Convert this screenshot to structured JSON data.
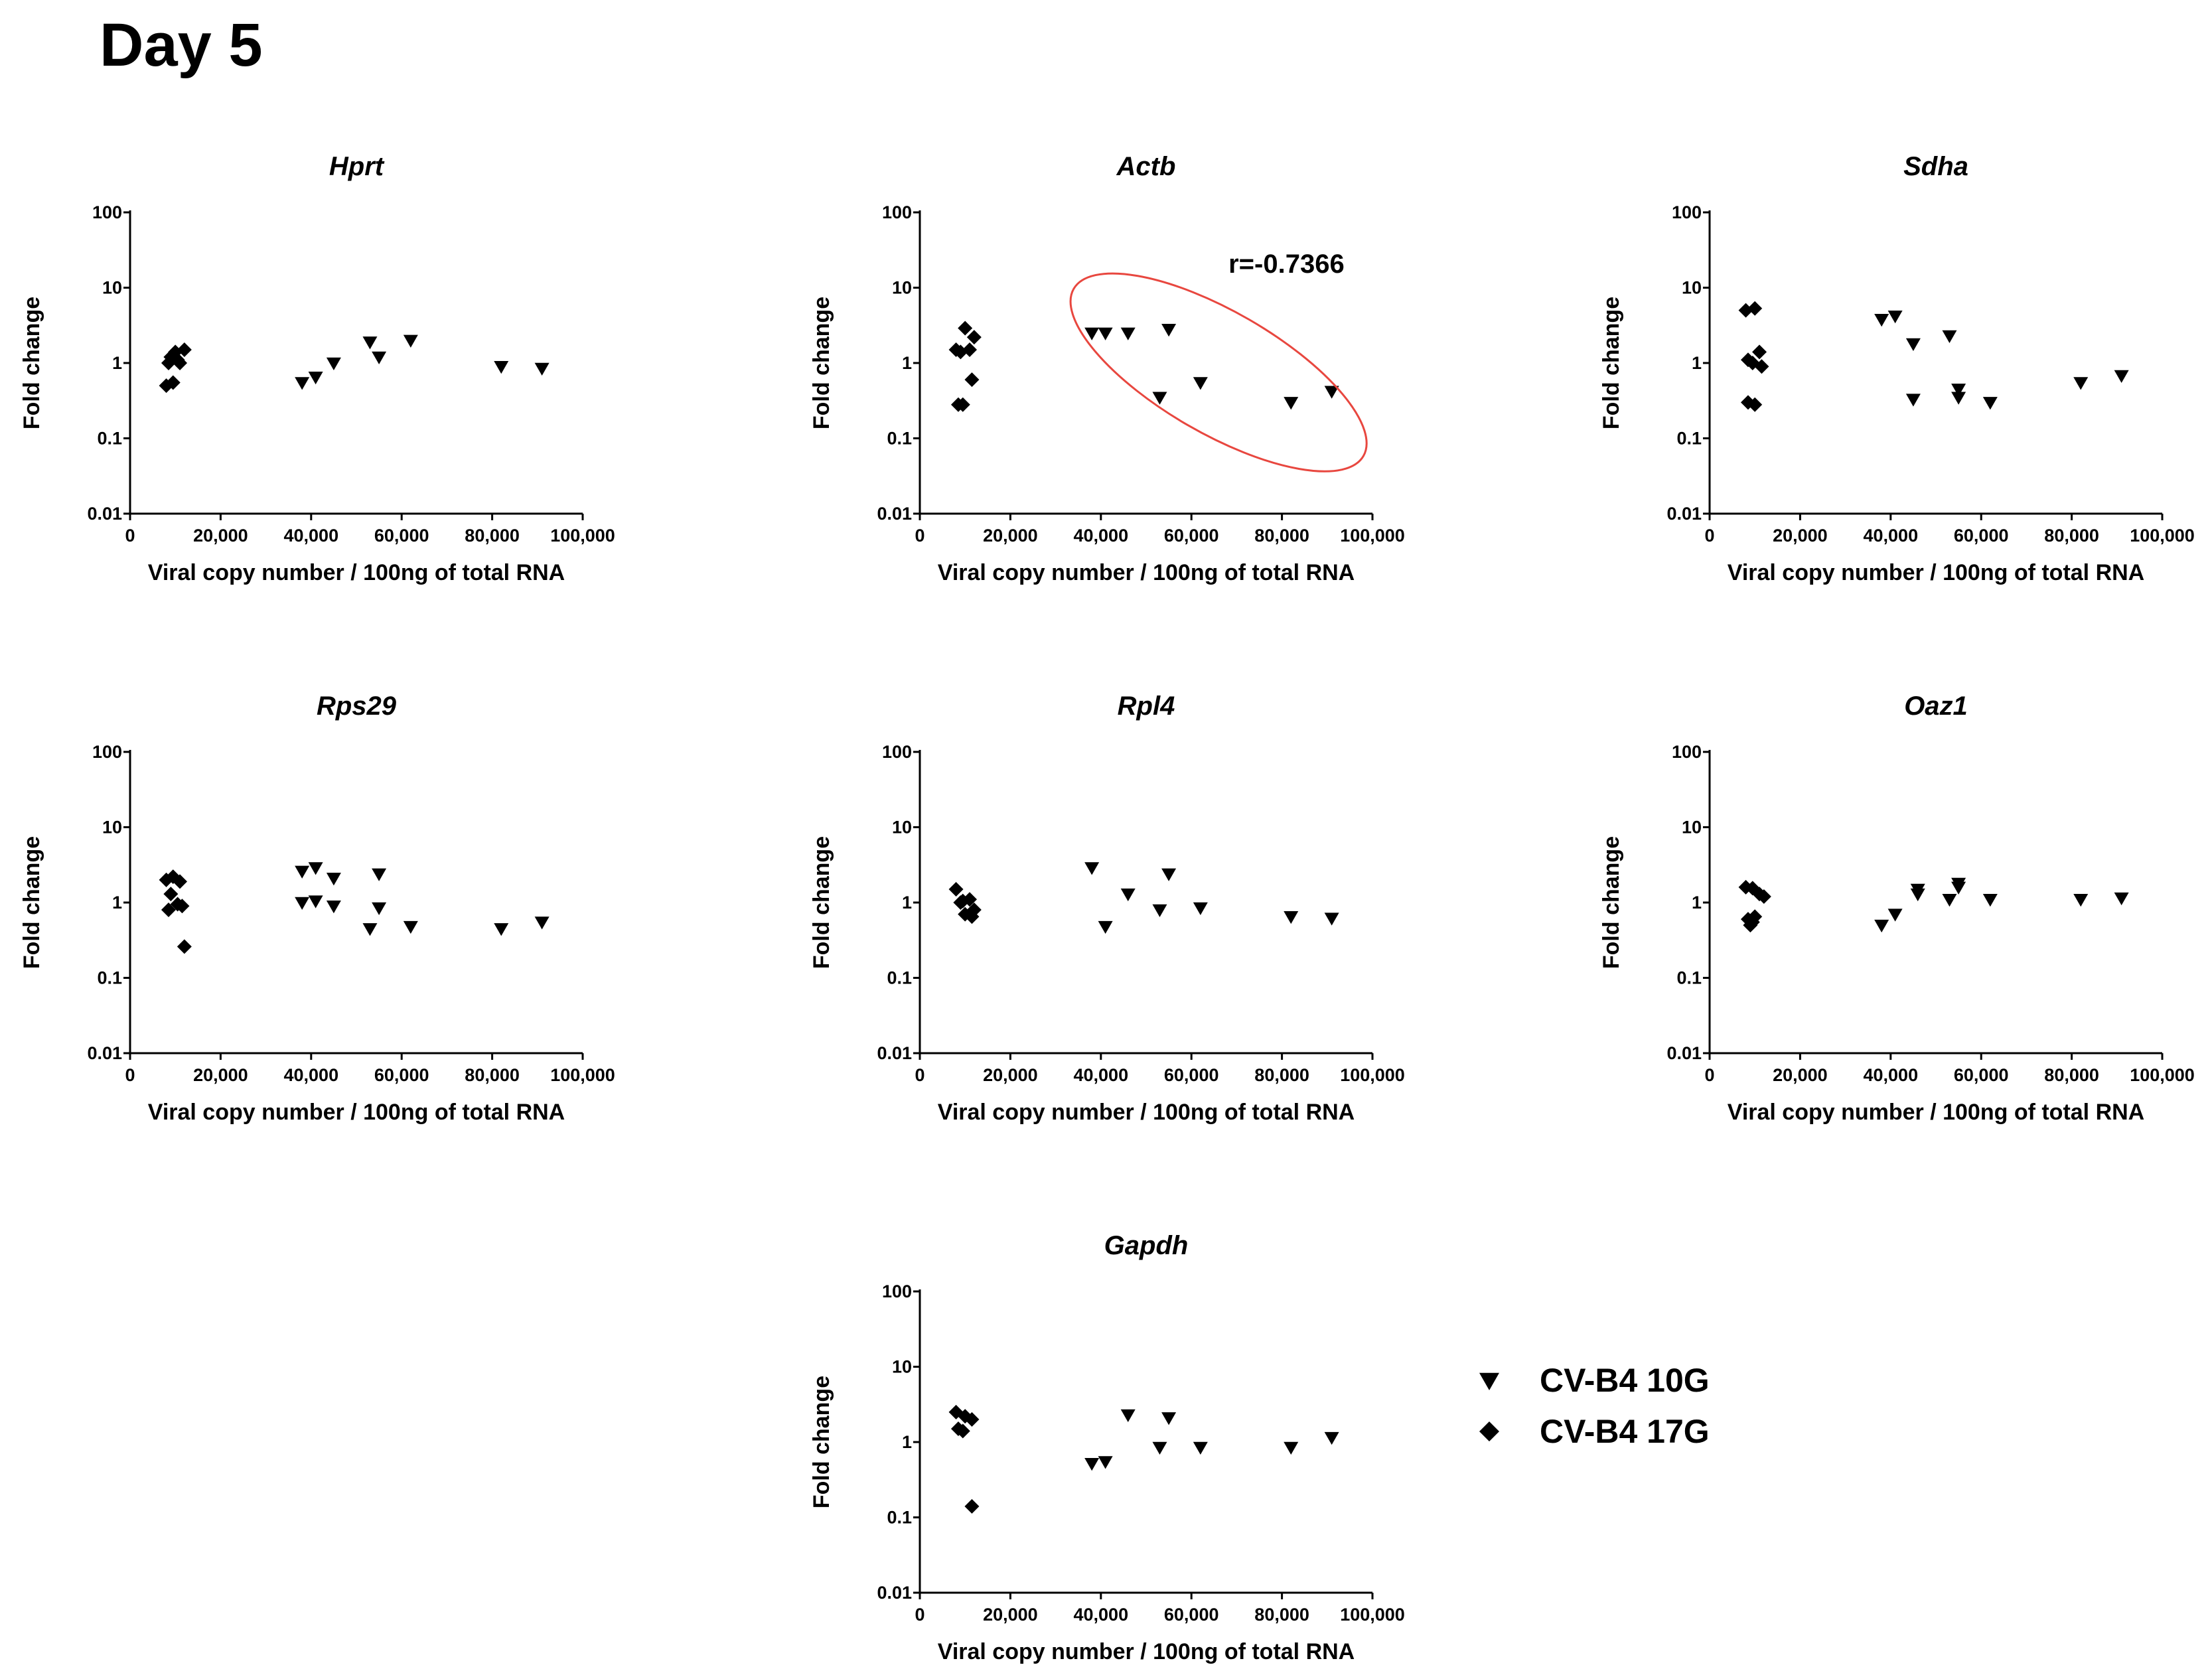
{
  "page_title": "Day 5",
  "colors": {
    "marker": "#000000",
    "annotation_ellipse": "#e8473f"
  },
  "legend": [
    {
      "label": "CV-B4 10G",
      "marker": "triangle-down"
    },
    {
      "label": "CV-B4 17G",
      "marker": "diamond"
    }
  ],
  "chart_data": [
    {
      "type": "scatter",
      "title": "Hprt",
      "xlabel": "Viral copy number / 100ng of total RNA",
      "ylabel": "Fold change",
      "xlim": [
        0,
        100000
      ],
      "ylim": [
        0.01,
        100
      ],
      "yscale": "log",
      "xticks": [
        "0",
        "20,000",
        "40,000",
        "60,000",
        "80,000",
        "100,000"
      ],
      "yticks": [
        "0.01",
        "0.1",
        "1",
        "10",
        "100"
      ],
      "series": [
        {
          "name": "CV-B4 10G",
          "marker": "triangle-down",
          "points": [
            [
              38000,
              0.55
            ],
            [
              41000,
              0.65
            ],
            [
              45000,
              1.0
            ],
            [
              53000,
              1.9
            ],
            [
              55000,
              1.2
            ],
            [
              62000,
              2.0
            ],
            [
              82000,
              0.9
            ],
            [
              91000,
              0.85
            ]
          ]
        },
        {
          "name": "CV-B4 17G",
          "marker": "diamond",
          "points": [
            [
              8000,
              0.5
            ],
            [
              9000,
              1.2
            ],
            [
              10000,
              1.4
            ],
            [
              11000,
              1.0
            ],
            [
              12000,
              1.5
            ],
            [
              9500,
              0.55
            ],
            [
              10500,
              1.1
            ],
            [
              8500,
              1.0
            ]
          ]
        }
      ]
    },
    {
      "type": "scatter",
      "title": "Actb",
      "xlabel": "Viral copy number / 100ng of total RNA",
      "ylabel": "Fold change",
      "xlim": [
        0,
        100000
      ],
      "ylim": [
        0.01,
        100
      ],
      "yscale": "log",
      "xticks": [
        "0",
        "20,000",
        "40,000",
        "60,000",
        "80,000",
        "100,000"
      ],
      "yticks": [
        "0.01",
        "0.1",
        "1",
        "10",
        "100"
      ],
      "annotation": "r=-0.7366",
      "series": [
        {
          "name": "CV-B4 10G",
          "marker": "triangle-down",
          "points": [
            [
              38000,
              2.5
            ],
            [
              41000,
              2.5
            ],
            [
              46000,
              2.5
            ],
            [
              55000,
              2.8
            ],
            [
              53000,
              0.35
            ],
            [
              62000,
              0.55
            ],
            [
              82000,
              0.3
            ],
            [
              91000,
              0.42
            ]
          ]
        },
        {
          "name": "CV-B4 17G",
          "marker": "diamond",
          "points": [
            [
              8000,
              1.5
            ],
            [
              10000,
              2.9
            ],
            [
              12000,
              2.2
            ],
            [
              11000,
              1.5
            ],
            [
              9000,
              1.4
            ],
            [
              11500,
              0.6
            ],
            [
              8500,
              0.28
            ],
            [
              9500,
              0.28
            ]
          ]
        }
      ]
    },
    {
      "type": "scatter",
      "title": "Sdha",
      "xlabel": "Viral copy number / 100ng of total RNA",
      "ylabel": "Fold change",
      "xlim": [
        0,
        100000
      ],
      "ylim": [
        0.01,
        100
      ],
      "yscale": "log",
      "xticks": [
        "0",
        "20,000",
        "40,000",
        "60,000",
        "80,000",
        "100,000"
      ],
      "yticks": [
        "0.01",
        "0.1",
        "1",
        "10",
        "100"
      ],
      "series": [
        {
          "name": "CV-B4 10G",
          "marker": "triangle-down",
          "points": [
            [
              38000,
              3.8
            ],
            [
              41000,
              4.2
            ],
            [
              45000,
              1.8
            ],
            [
              53000,
              2.3
            ],
            [
              45000,
              0.33
            ],
            [
              55000,
              0.45
            ],
            [
              55000,
              0.35
            ],
            [
              62000,
              0.3
            ],
            [
              82000,
              0.55
            ],
            [
              91000,
              0.68
            ]
          ]
        },
        {
          "name": "CV-B4 17G",
          "marker": "diamond",
          "points": [
            [
              8000,
              5.0
            ],
            [
              10000,
              5.3
            ],
            [
              8500,
              1.1
            ],
            [
              11000,
              1.4
            ],
            [
              9500,
              1.0
            ],
            [
              11500,
              0.9
            ],
            [
              8500,
              0.3
            ],
            [
              10000,
              0.28
            ]
          ]
        }
      ]
    },
    {
      "type": "scatter",
      "title": "Rps29",
      "xlabel": "Viral copy number / 100ng of total RNA",
      "ylabel": "Fold change",
      "xlim": [
        0,
        100000
      ],
      "ylim": [
        0.01,
        100
      ],
      "yscale": "log",
      "xticks": [
        "0",
        "20,000",
        "40,000",
        "60,000",
        "80,000",
        "100,000"
      ],
      "yticks": [
        "0.01",
        "0.1",
        "1",
        "10",
        "100"
      ],
      "series": [
        {
          "name": "CV-B4 10G",
          "marker": "triangle-down",
          "points": [
            [
              38000,
              2.6
            ],
            [
              41000,
              2.9
            ],
            [
              45000,
              2.1
            ],
            [
              55000,
              2.4
            ],
            [
              38000,
              1.0
            ],
            [
              41000,
              1.05
            ],
            [
              45000,
              0.9
            ],
            [
              53000,
              0.45
            ],
            [
              55000,
              0.85
            ],
            [
              62000,
              0.48
            ],
            [
              82000,
              0.45
            ],
            [
              91000,
              0.55
            ]
          ]
        },
        {
          "name": "CV-B4 17G",
          "marker": "diamond",
          "points": [
            [
              8000,
              2.0
            ],
            [
              9500,
              2.2
            ],
            [
              11000,
              1.9
            ],
            [
              9000,
              1.3
            ],
            [
              10500,
              0.95
            ],
            [
              11500,
              0.9
            ],
            [
              8500,
              0.8
            ],
            [
              12000,
              0.26
            ]
          ]
        }
      ]
    },
    {
      "type": "scatter",
      "title": "Rpl4",
      "xlabel": "Viral copy number / 100ng of total RNA",
      "ylabel": "Fold change",
      "xlim": [
        0,
        100000
      ],
      "ylim": [
        0.01,
        100
      ],
      "yscale": "log",
      "xticks": [
        "0",
        "20,000",
        "40,000",
        "60,000",
        "80,000",
        "100,000"
      ],
      "yticks": [
        "0.01",
        "0.1",
        "1",
        "10",
        "100"
      ],
      "series": [
        {
          "name": "CV-B4 10G",
          "marker": "triangle-down",
          "points": [
            [
              38000,
              2.9
            ],
            [
              41000,
              0.48
            ],
            [
              46000,
              1.3
            ],
            [
              55000,
              2.4
            ],
            [
              53000,
              0.8
            ],
            [
              62000,
              0.85
            ],
            [
              82000,
              0.65
            ],
            [
              91000,
              0.62
            ]
          ]
        },
        {
          "name": "CV-B4 17G",
          "marker": "diamond",
          "points": [
            [
              8000,
              1.5
            ],
            [
              9000,
              1.0
            ],
            [
              11000,
              1.1
            ],
            [
              12000,
              0.8
            ],
            [
              10000,
              0.7
            ],
            [
              11500,
              0.65
            ],
            [
              9500,
              1.05
            ]
          ]
        }
      ]
    },
    {
      "type": "scatter",
      "title": "Oaz1",
      "xlabel": "Viral copy number / 100ng of total RNA",
      "ylabel": "Fold change",
      "xlim": [
        0,
        100000
      ],
      "ylim": [
        0.01,
        100
      ],
      "yscale": "log",
      "xticks": [
        "0",
        "20,000",
        "40,000",
        "60,000",
        "80,000",
        "100,000"
      ],
      "yticks": [
        "0.01",
        "0.1",
        "1",
        "10",
        "100"
      ],
      "series": [
        {
          "name": "CV-B4 10G",
          "marker": "triangle-down",
          "points": [
            [
              38000,
              0.5
            ],
            [
              41000,
              0.7
            ],
            [
              46000,
              1.5
            ],
            [
              46000,
              1.3
            ],
            [
              53000,
              1.1
            ],
            [
              55000,
              1.8
            ],
            [
              55000,
              1.6
            ],
            [
              62000,
              1.1
            ],
            [
              82000,
              1.1
            ],
            [
              91000,
              1.15
            ]
          ]
        },
        {
          "name": "CV-B4 17G",
          "marker": "diamond",
          "points": [
            [
              8000,
              1.6
            ],
            [
              9500,
              1.55
            ],
            [
              11000,
              1.3
            ],
            [
              12000,
              1.2
            ],
            [
              8500,
              0.6
            ],
            [
              9000,
              0.5
            ],
            [
              10000,
              0.65
            ],
            [
              9500,
              0.55
            ]
          ]
        }
      ]
    },
    {
      "type": "scatter",
      "title": "Gapdh",
      "xlabel": "Viral copy number / 100ng of total RNA",
      "ylabel": "Fold change",
      "xlim": [
        0,
        100000
      ],
      "ylim": [
        0.01,
        100
      ],
      "yscale": "log",
      "xticks": [
        "0",
        "20,000",
        "40,000",
        "60,000",
        "80,000",
        "100,000"
      ],
      "yticks": [
        "0.01",
        "0.1",
        "1",
        "10",
        "100"
      ],
      "series": [
        {
          "name": "CV-B4 10G",
          "marker": "triangle-down",
          "points": [
            [
              38000,
              0.52
            ],
            [
              41000,
              0.55
            ],
            [
              46000,
              2.3
            ],
            [
              55000,
              2.1
            ],
            [
              53000,
              0.85
            ],
            [
              62000,
              0.85
            ],
            [
              82000,
              0.85
            ],
            [
              91000,
              1.15
            ]
          ]
        },
        {
          "name": "CV-B4 17G",
          "marker": "diamond",
          "points": [
            [
              8000,
              2.5
            ],
            [
              10000,
              2.2
            ],
            [
              11500,
              2.0
            ],
            [
              8500,
              1.5
            ],
            [
              9500,
              1.4
            ],
            [
              11500,
              0.14
            ]
          ]
        }
      ]
    }
  ]
}
